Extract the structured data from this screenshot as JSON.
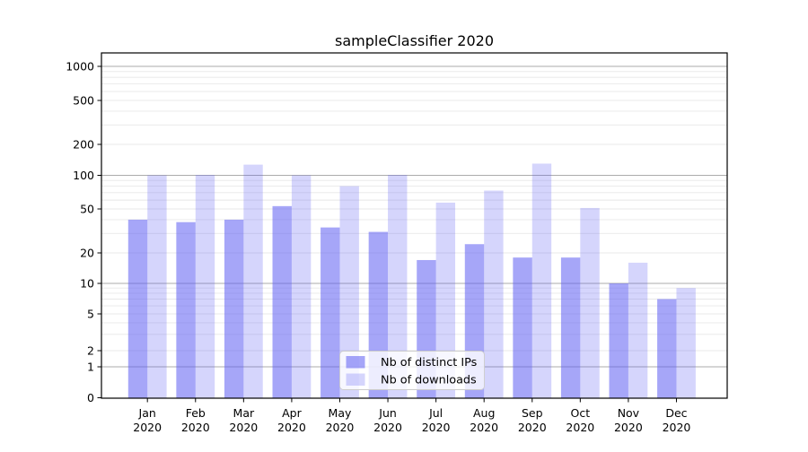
{
  "chart_data": {
    "type": "bar",
    "title": "sampleClassifier 2020",
    "categories": [
      {
        "month": "Jan",
        "year": "2020"
      },
      {
        "month": "Feb",
        "year": "2020"
      },
      {
        "month": "Mar",
        "year": "2020"
      },
      {
        "month": "Apr",
        "year": "2020"
      },
      {
        "month": "May",
        "year": "2020"
      },
      {
        "month": "Jun",
        "year": "2020"
      },
      {
        "month": "Jul",
        "year": "2020"
      },
      {
        "month": "Aug",
        "year": "2020"
      },
      {
        "month": "Sep",
        "year": "2020"
      },
      {
        "month": "Oct",
        "year": "2020"
      },
      {
        "month": "Nov",
        "year": "2020"
      },
      {
        "month": "Dec",
        "year": "2020"
      }
    ],
    "series": [
      {
        "name": "Nb of distinct IPs",
        "color": "rgba(92,92,242,0.55)",
        "values": [
          40,
          38,
          40,
          53,
          34,
          31,
          17,
          24,
          18,
          18,
          10,
          7
        ]
      },
      {
        "name": "Nb of downloads",
        "color": "rgba(92,92,242,0.26)",
        "values": [
          100,
          101,
          127,
          100,
          80,
          101,
          57,
          73,
          130,
          51,
          16,
          9
        ]
      }
    ],
    "y_ticks": [
      0,
      1,
      2,
      5,
      10,
      20,
      50,
      100,
      200,
      500,
      1000
    ],
    "y_major_gridlines": [
      1,
      10,
      100,
      1000
    ],
    "y_minor_gridlines": [
      3,
      4,
      6,
      7,
      8,
      9,
      30,
      40,
      60,
      70,
      80,
      90,
      300,
      400,
      600,
      700,
      800,
      900
    ],
    "y_scale": "log above 1, compressed linear toward 0",
    "ylim": [
      0,
      1300
    ],
    "grid": "horizontal major+minor",
    "legend_position": "inside lower center-right",
    "colors": {
      "major_grid": "#ababab",
      "minor_grid": "#e8e8e8",
      "axis": "#000000",
      "legend_border": "#cccccc",
      "legend_background": "rgba(255,255,255,0.8)"
    }
  }
}
